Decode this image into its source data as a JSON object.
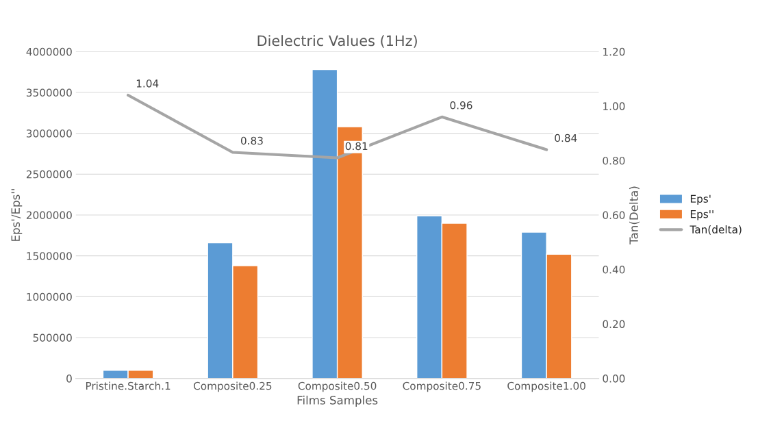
{
  "chart_data": {
    "type": "bar",
    "title": "Dielectric Values (1Hz)",
    "xlabel": "Films Samples",
    "ylabel": "Eps'/Eps''",
    "y2label": "Tan(Delta)",
    "categories": [
      "Pristine.Starch.1",
      "Composite0.25",
      "Composite0.50",
      "Composite0.75",
      "Composite1.00"
    ],
    "series": [
      {
        "name": "Eps'",
        "color": "#5b9bd5",
        "values": [
          100000,
          1660000,
          3780000,
          1990000,
          1790000
        ]
      },
      {
        "name": "Eps''",
        "color": "#ed7d31",
        "values": [
          100000,
          1380000,
          3080000,
          1900000,
          1520000
        ]
      },
      {
        "name": "Tan(delta)",
        "type": "line",
        "axis": "y2",
        "color": "#a5a5a5",
        "values": [
          1.04,
          0.83,
          0.81,
          0.96,
          0.84
        ],
        "value_labels": [
          "1.04",
          "0.83",
          "0.81",
          "0.96",
          "0.84"
        ]
      }
    ],
    "ylim": [
      0,
      4000000
    ],
    "yticks": [
      0,
      500000,
      1000000,
      1500000,
      2000000,
      2500000,
      3000000,
      3500000,
      4000000
    ],
    "y2lim": [
      0,
      1.2
    ],
    "y2ticks": [
      {
        "value": 0,
        "label": "0.00"
      },
      {
        "value": 0.2,
        "label": "0.20"
      },
      {
        "value": 0.4,
        "label": "0.40"
      },
      {
        "value": 0.6,
        "label": "0.60"
      },
      {
        "value": 0.8,
        "label": "0.80"
      },
      {
        "value": 1.0,
        "label": "1.00"
      },
      {
        "value": 1.2,
        "label": "1.20"
      }
    ],
    "grid": "y",
    "legend": "right",
    "marker": "none"
  }
}
